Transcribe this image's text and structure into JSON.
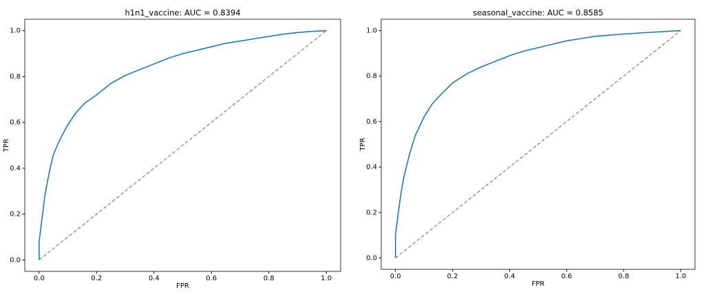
{
  "chart_data": [
    {
      "type": "line",
      "title": "h1n1_vaccine: AUC = 0.8394",
      "xlabel": "FPR",
      "ylabel": "TPR",
      "color": "#1f77b4",
      "x": [
        0,
        0,
        0.01,
        0.02,
        0.03,
        0.04,
        0.05,
        0.07,
        0.1,
        0.13,
        0.16,
        0.2,
        0.25,
        0.3,
        0.35,
        0.4,
        0.45,
        0.5,
        0.55,
        0.6,
        0.65,
        0.7,
        0.75,
        0.8,
        0.85,
        0.9,
        0.95,
        1
      ],
      "values": [
        0,
        0.08,
        0.18,
        0.28,
        0.35,
        0.41,
        0.46,
        0.52,
        0.59,
        0.645,
        0.685,
        0.72,
        0.77,
        0.805,
        0.83,
        0.855,
        0.88,
        0.9,
        0.915,
        0.93,
        0.945,
        0.955,
        0.965,
        0.975,
        0.985,
        0.992,
        0.997,
        1
      ],
      "diagonal": {
        "x": [
          0,
          1
        ],
        "values": [
          0,
          1
        ],
        "color": "#808080"
      },
      "xlim": [
        -0.05,
        1.05
      ],
      "ylim": [
        -0.05,
        1.05
      ],
      "xticks": [
        {
          "value": 0,
          "label": "0.0"
        },
        0.2,
        0.4,
        0.6,
        0.8,
        {
          "value": 1,
          "label": "1.0"
        }
      ],
      "yticks": [
        {
          "value": 0,
          "label": "0.0"
        },
        0.2,
        0.4,
        0.6,
        0.8,
        {
          "value": 1,
          "label": "1.0"
        }
      ]
    },
    {
      "type": "line",
      "title": "seasonal_vaccine: AUC = 0.8585",
      "xlabel": "FPR",
      "ylabel": "TPR",
      "color": "#1f77b4",
      "x": [
        0,
        0,
        0.01,
        0.02,
        0.03,
        0.05,
        0.07,
        0.1,
        0.13,
        0.16,
        0.2,
        0.25,
        0.3,
        0.35,
        0.4,
        0.45,
        0.5,
        0.55,
        0.6,
        0.65,
        0.7,
        0.8,
        0.9,
        1
      ],
      "values": [
        0,
        0.1,
        0.2,
        0.29,
        0.36,
        0.46,
        0.54,
        0.62,
        0.68,
        0.72,
        0.77,
        0.81,
        0.84,
        0.865,
        0.89,
        0.91,
        0.925,
        0.94,
        0.955,
        0.965,
        0.975,
        0.985,
        0.993,
        1
      ],
      "diagonal": {
        "x": [
          0,
          1
        ],
        "values": [
          0,
          1
        ],
        "color": "#808080"
      },
      "xlim": [
        -0.05,
        1.05
      ],
      "ylim": [
        -0.05,
        1.05
      ],
      "xticks": [
        {
          "value": 0,
          "label": "0.0"
        },
        0.2,
        0.4,
        0.6,
        0.8,
        {
          "value": 1,
          "label": "1.0"
        }
      ],
      "yticks": [
        {
          "value": 0,
          "label": "0.0"
        },
        0.2,
        0.4,
        0.6,
        0.8,
        {
          "value": 1,
          "label": "1.0"
        }
      ]
    }
  ]
}
